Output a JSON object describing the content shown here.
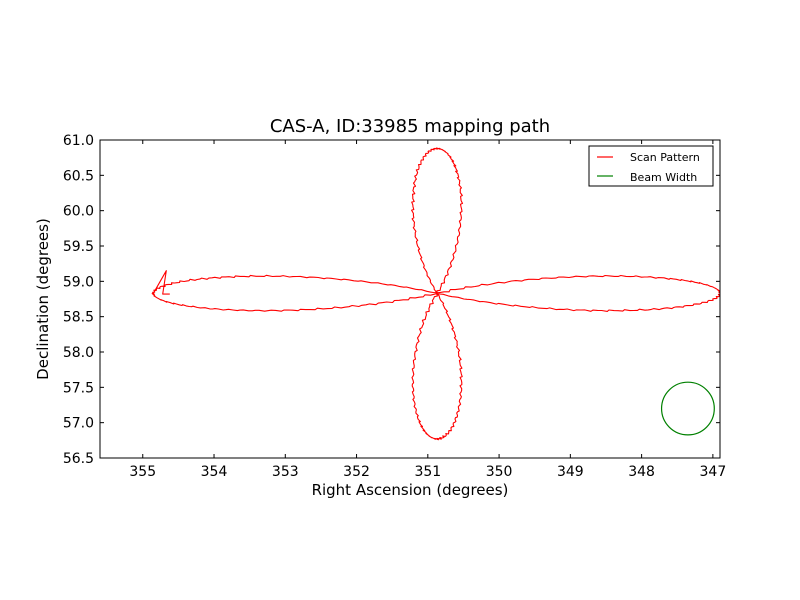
{
  "chart_data": {
    "type": "line",
    "title": "CAS-A, ID:33985 mapping path",
    "xlabel": "Right Ascension (degrees)",
    "ylabel": "Declination (degrees)",
    "xlim": [
      355.6,
      346.9
    ],
    "ylim": [
      56.5,
      61.0
    ],
    "x_inverted": true,
    "xticks": [
      355,
      354,
      353,
      352,
      351,
      350,
      349,
      348,
      347
    ],
    "xtick_labels": [
      "355",
      "354",
      "353",
      "352",
      "351",
      "350",
      "349",
      "348",
      "347"
    ],
    "yticks": [
      56.5,
      57.0,
      57.5,
      58.0,
      58.5,
      59.0,
      59.5,
      60.0,
      60.5,
      61.0
    ],
    "ytick_labels": [
      "56.5",
      "57.0",
      "57.5",
      "58.0",
      "58.5",
      "59.0",
      "59.5",
      "60.0",
      "60.5",
      "61.0"
    ],
    "grid": false,
    "legend_position": "top-right",
    "series": [
      {
        "name": "Scan Pattern",
        "color": "#ff0000",
        "shape": "rotated four-leaf rose scan path",
        "center": [
          350.87,
          58.83
        ],
        "lobes": {
          "east_extent_ra": 354.85,
          "west_extent_ra": 346.9,
          "north_extent_dec": 60.88,
          "south_extent_dec": 56.77
        },
        "start_point": [
          354.62,
          58.82
        ],
        "start_turn_point": [
          354.67,
          59.15
        ]
      },
      {
        "name": "Beam Width",
        "color": "#008000",
        "shape": "circle",
        "center": [
          347.35,
          57.2
        ],
        "radius_deg": 0.37
      }
    ]
  }
}
